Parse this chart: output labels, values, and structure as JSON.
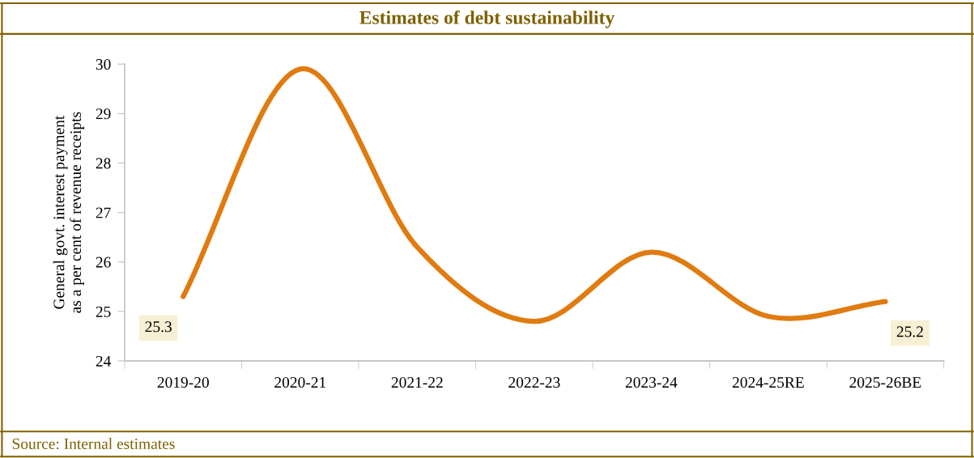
{
  "chart_data": {
    "type": "line",
    "title": "Estimates of debt sustainability",
    "ylabel": "General govt. interest payment\nas a per cent of revenue receipts",
    "categories": [
      "2019-20",
      "2020-21",
      "2021-22",
      "2022-23",
      "2023-24",
      "2024-25RE",
      "2025-26BE"
    ],
    "series": [
      {
        "color": "#e07b10",
        "values": [
          25.3,
          29.9,
          26.3,
          24.8,
          26.2,
          24.9,
          25.2
        ],
        "value_labels": [
          "25.3",
          null,
          null,
          null,
          null,
          null,
          "25.2"
        ]
      }
    ],
    "ylim": [
      24,
      30
    ],
    "yticks": [
      24,
      25,
      26,
      27,
      28,
      29,
      30
    ],
    "grid": false,
    "legend": false,
    "marker": "none",
    "line_style": "solid",
    "annotations": [
      "Source: Internal estimates"
    ]
  }
}
